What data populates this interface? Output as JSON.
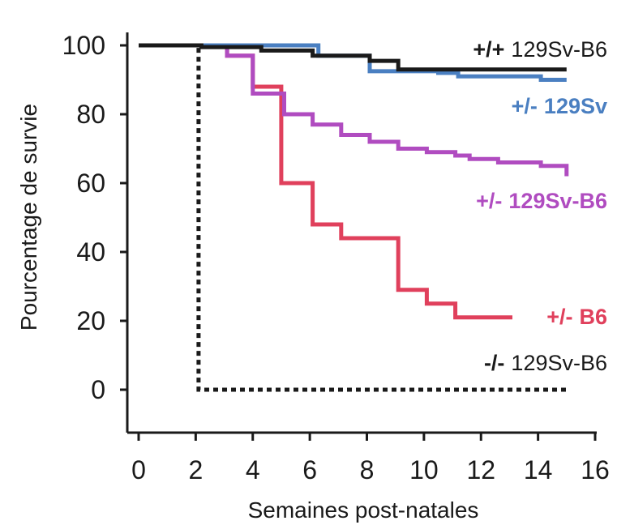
{
  "chart_data": {
    "type": "line",
    "step": true,
    "xlabel": "Semaines post-natales",
    "ylabel": "Pourcentage de survie",
    "xlim": [
      0,
      16
    ],
    "ylim": [
      0,
      100
    ],
    "xticks": [
      "0",
      "2",
      "4",
      "6",
      "8",
      "10",
      "12",
      "14",
      "16"
    ],
    "yticks": [
      "0",
      "20",
      "40",
      "60",
      "80",
      "100"
    ],
    "grid": false,
    "legend": "inline labels at right end of each curve",
    "series": [
      {
        "id": "wt",
        "genotype": "+/+",
        "strain": "129Sv-B6",
        "color": "#1a1a1a",
        "dashed": false,
        "x": [
          0,
          2.2,
          4.3,
          6.1,
          8.1,
          9.1,
          15
        ],
        "y": [
          100,
          99.5,
          98.5,
          97,
          95.5,
          93,
          93
        ]
      },
      {
        "id": "het129",
        "genotype": "+/-",
        "strain": "129Sv",
        "color": "#4a7fc1",
        "dashed": false,
        "x": [
          0,
          6.3,
          8.1,
          10.5,
          11.2,
          14.1,
          15
        ],
        "y": [
          100,
          97,
          92.5,
          92,
          91,
          90,
          90
        ]
      },
      {
        "id": "hetmix",
        "genotype": "+/-",
        "strain": "129Sv-B6",
        "color": "#b04cc0",
        "dashed": false,
        "x": [
          0,
          3.1,
          4.0,
          5.1,
          6.1,
          7.1,
          8.1,
          9.1,
          10.1,
          11.1,
          11.6,
          12.6,
          14.1,
          15
        ],
        "y": [
          100,
          97,
          86,
          80,
          77,
          74,
          72,
          70,
          69,
          68,
          67,
          66,
          65,
          62
        ],
        "end": 15
      },
      {
        "id": "hetb6",
        "genotype": "+/-",
        "strain": "B6",
        "color": "#e0405c",
        "dashed": false,
        "x": [
          0,
          3.1,
          4.0,
          5.0,
          6.1,
          7.1,
          9.1,
          10.1,
          11.1,
          13.1
        ],
        "y": [
          100,
          97,
          88,
          60,
          48,
          44,
          29,
          25,
          21,
          21
        ]
      },
      {
        "id": "ko",
        "genotype": "-/-",
        "strain": "129Sv-B6",
        "color": "#1a1a1a",
        "dashed": true,
        "x": [
          0,
          2.1,
          15
        ],
        "y": [
          100,
          0,
          0
        ]
      }
    ]
  }
}
